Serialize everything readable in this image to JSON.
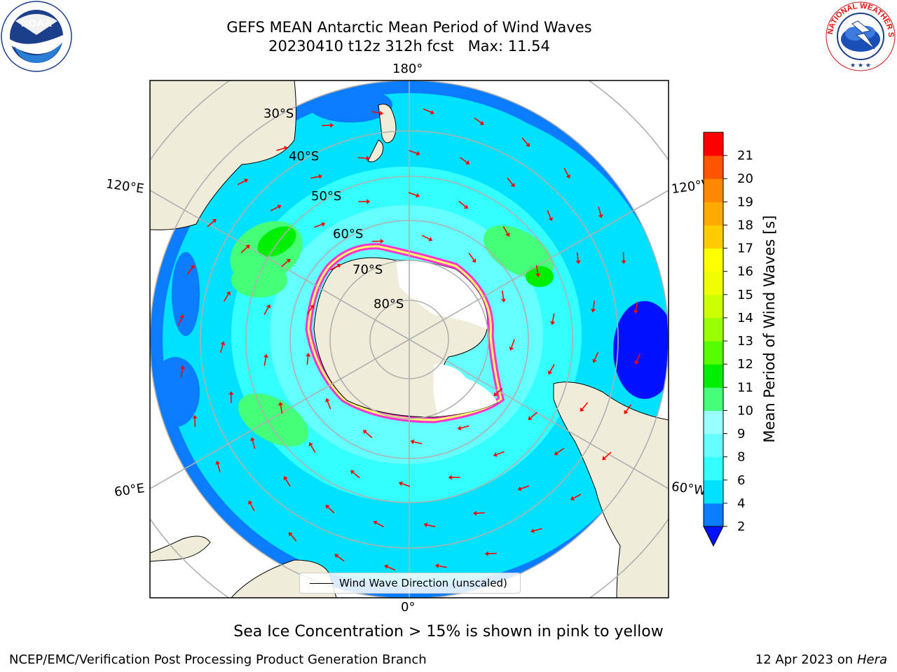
{
  "title": {
    "line1": "GEFS MEAN Antarctic Mean Period of Wind Waves",
    "line2": "20230410 t12z 312h fcst   Max: 11.54"
  },
  "map": {
    "projection": "south-polar-stereographic",
    "longitude_labels": {
      "top": "180°",
      "bottom": "0°",
      "upper_left": "120°E",
      "upper_right": "120°W",
      "lower_left": "60°E",
      "lower_right": "60°W"
    },
    "latitude_labels": [
      "30°S",
      "40°S",
      "50°S",
      "60°S",
      "70°S",
      "80°S"
    ],
    "land_color": "#efedd9",
    "ice_shelf_color": "#ffffff",
    "sea_ice_colors": [
      "#ff33cc",
      "#ffff66"
    ],
    "arrow_color": "#ff0000"
  },
  "legend": {
    "label": "Wind Wave Direction (unscaled)"
  },
  "colorbar": {
    "label": "Mean Period of Wind Waves [s]",
    "ticks": [
      "2",
      "4",
      "6",
      "8",
      "9",
      "10",
      "11",
      "12",
      "13",
      "14",
      "15",
      "16",
      "17",
      "18",
      "19",
      "20",
      "21"
    ],
    "colors": [
      "#0a7cff",
      "#00e1ff",
      "#33ffff",
      "#66ffff",
      "#99ffff",
      "#44ff77",
      "#00ee00",
      "#55ff00",
      "#99ff00",
      "#ccff00",
      "#eeff00",
      "#ffff00",
      "#ffcc00",
      "#ffaa00",
      "#ff8800",
      "#ff5500",
      "#ff0000"
    ],
    "extend_min_color": "#0011ff"
  },
  "caption": "Sea Ice Concentration > 15% is shown in pink to yellow",
  "footer": {
    "left": "NCEP/EMC/Verification Post Processing Product Generation Branch",
    "right_prefix": "12 Apr 2023 on ",
    "right_system": "Hera"
  },
  "logos": {
    "left": "noaa-logo",
    "right": "nws-logo",
    "left_text": "NOAA",
    "right_text": "NATIONAL WEATHER SERVICE"
  }
}
